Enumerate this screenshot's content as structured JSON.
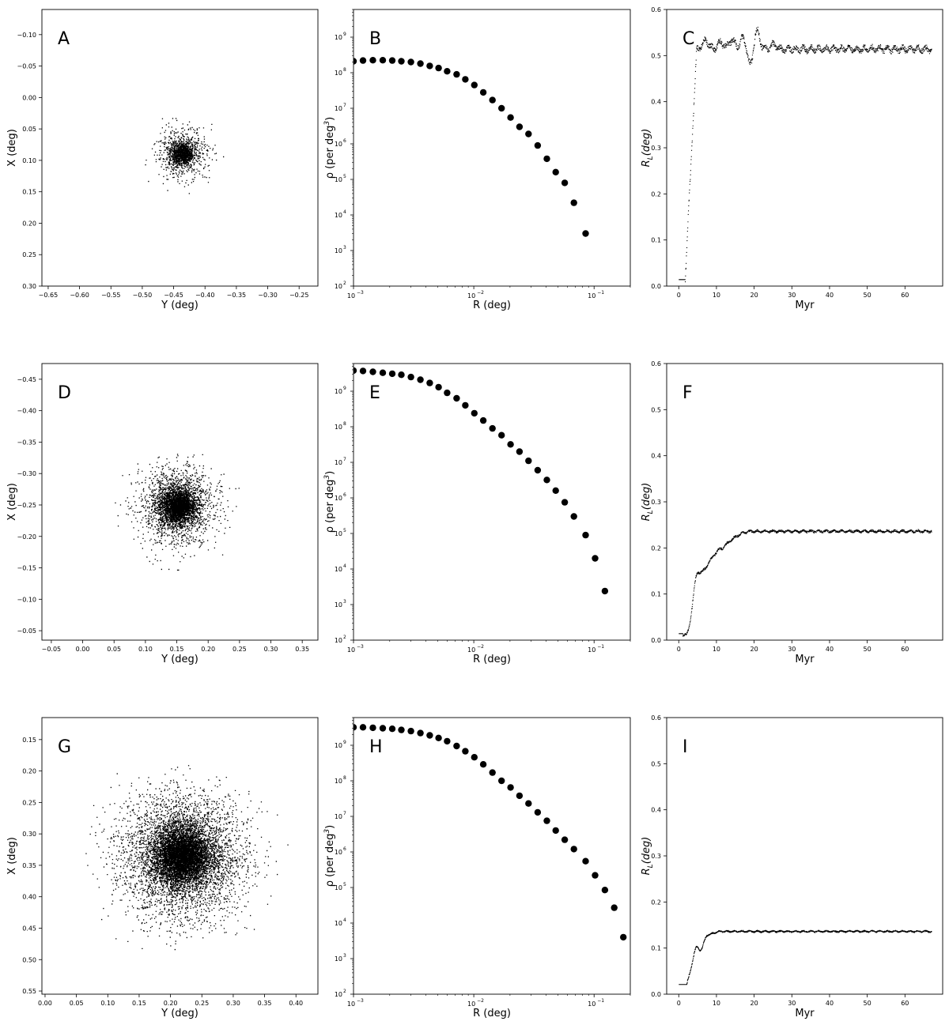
{
  "figure": {
    "panels": [
      "A",
      "B",
      "C",
      "D",
      "E",
      "F",
      "G",
      "H",
      "I"
    ]
  },
  "chart_data": [
    {
      "id": "A",
      "type": "scatter",
      "panel_label": "A",
      "xlabel": "Y (deg)",
      "ylabel": "X (deg)",
      "xlim": [
        -0.66,
        -0.22
      ],
      "ylim": [
        0.3,
        -0.14
      ],
      "y_inverted": true,
      "xticks": [
        -0.65,
        -0.6,
        -0.55,
        -0.5,
        -0.45,
        -0.4,
        -0.35,
        -0.3,
        -0.25
      ],
      "yticks": [
        -0.1,
        -0.05,
        0.0,
        0.05,
        0.1,
        0.15,
        0.2,
        0.25,
        0.3
      ],
      "cluster": {
        "center": [
          -0.437,
          0.088
        ],
        "core_sigma": 0.009,
        "halo_sigma": 0.02,
        "outer_radius": 0.07,
        "n_points": 1500
      }
    },
    {
      "id": "B",
      "type": "scatter",
      "panel_label": "B",
      "xlabel": "R (deg)",
      "ylabel": "ρ (per deg",
      "ylabel_sup": "3",
      "ylabel_end": ")",
      "x_scale": "log",
      "y_scale": "log",
      "xlim": [
        0.001,
        0.2
      ],
      "ylim": [
        100,
        6000000000.0
      ],
      "xticks": [
        0.001,
        0.01,
        0.1
      ],
      "xtick_labels": [
        "10",
        "10",
        "10"
      ],
      "xtick_sups": [
        "-3",
        "-2",
        "-1"
      ],
      "yticks": [
        100,
        1000,
        10000,
        100000,
        1000000,
        10000000,
        100000000,
        1000000000
      ],
      "ytick_labels": [
        "10",
        "10",
        "10",
        "10",
        "10",
        "10",
        "10",
        "10"
      ],
      "ytick_sups": [
        "2",
        "3",
        "4",
        "5",
        "6",
        "7",
        "8",
        "9"
      ],
      "x": [
        0.001,
        0.0012,
        0.00145,
        0.00175,
        0.0021,
        0.0025,
        0.003,
        0.0036,
        0.0043,
        0.0051,
        0.006,
        0.0072,
        0.0085,
        0.0101,
        0.012,
        0.0143,
        0.017,
        0.0202,
        0.024,
        0.0285,
        0.034,
        0.0405,
        0.048,
        0.057,
        0.068,
        0.085
      ],
      "y": [
        210000000.0,
        220000000.0,
        225000000.0,
        225000000.0,
        220000000.0,
        210000000.0,
        200000000.0,
        180000000.0,
        155000000.0,
        135000000.0,
        110000000.0,
        90000000.0,
        65000000.0,
        45000000.0,
        28000000.0,
        17000000.0,
        10000000.0,
        5500000.0,
        3000000.0,
        1900000.0,
        900000.0,
        380000.0,
        160000.0,
        80000.0,
        22000.0,
        3000.0
      ]
    },
    {
      "id": "C",
      "type": "scatter",
      "panel_label": "C",
      "xlabel": "Myr",
      "ylabel": "R",
      "ylabel_sub": "L",
      "ylabel_end": "(deg)",
      "xlim": [
        -3.2,
        70
      ],
      "ylim": [
        0,
        0.6
      ],
      "xticks": [
        0,
        10,
        20,
        30,
        40,
        50,
        60
      ],
      "yticks": [
        0,
        0.1,
        0.2,
        0.3,
        0.4,
        0.5,
        0.6
      ],
      "ytick_labels": [
        "0.0",
        "0.1",
        "0.2",
        "0.3",
        "0.4",
        "0.5",
        "0.6"
      ],
      "curve": {
        "t_end": 67,
        "base": 0.015,
        "rise_start": 1.6,
        "rise_end": 4.8,
        "plateau": 0.515,
        "noise": 0.008,
        "wiggles": [
          [
            7,
            0.02
          ],
          [
            11,
            0.015
          ],
          [
            14,
            0.02
          ],
          [
            17,
            0.025
          ],
          [
            19,
            -0.04
          ],
          [
            20.5,
            0.045
          ],
          [
            25,
            0.01
          ]
        ]
      }
    },
    {
      "id": "D",
      "type": "scatter",
      "panel_label": "D",
      "xlabel": "Y (deg)",
      "ylabel": "X (deg)",
      "xlim": [
        -0.065,
        0.375
      ],
      "ylim": [
        -0.035,
        -0.475
      ],
      "y_inverted": true,
      "xticks": [
        -0.05,
        0.0,
        0.05,
        0.1,
        0.15,
        0.2,
        0.25,
        0.3,
        0.35
      ],
      "yticks": [
        -0.45,
        -0.4,
        -0.35,
        -0.3,
        -0.25,
        -0.2,
        -0.15,
        -0.1,
        -0.05
      ],
      "cluster": {
        "center": [
          0.152,
          -0.248
        ],
        "core_sigma": 0.013,
        "halo_sigma": 0.03,
        "outer_radius": 0.105,
        "n_points": 4000
      }
    },
    {
      "id": "E",
      "type": "scatter",
      "panel_label": "E",
      "xlabel": "R (deg)",
      "ylabel": "ρ (per deg",
      "ylabel_sup": "3",
      "ylabel_end": ")",
      "x_scale": "log",
      "y_scale": "log",
      "xlim": [
        0.001,
        0.2
      ],
      "ylim": [
        100,
        6000000000.0
      ],
      "xticks": [
        0.001,
        0.01,
        0.1
      ],
      "xtick_labels": [
        "10",
        "10",
        "10"
      ],
      "xtick_sups": [
        "-3",
        "-2",
        "-1"
      ],
      "yticks": [
        100,
        1000,
        10000,
        100000,
        1000000,
        10000000,
        100000000,
        1000000000
      ],
      "ytick_labels": [
        "10",
        "10",
        "10",
        "10",
        "10",
        "10",
        "10",
        "10"
      ],
      "ytick_sups": [
        "2",
        "3",
        "4",
        "5",
        "6",
        "7",
        "8",
        "9"
      ],
      "x": [
        0.001,
        0.0012,
        0.00145,
        0.00175,
        0.0021,
        0.0025,
        0.003,
        0.0036,
        0.0043,
        0.0051,
        0.006,
        0.0072,
        0.0085,
        0.0101,
        0.012,
        0.0143,
        0.017,
        0.0202,
        0.024,
        0.0285,
        0.034,
        0.0405,
        0.048,
        0.057,
        0.068,
        0.085,
        0.102,
        0.123
      ],
      "y": [
        3800000000.0,
        3700000000.0,
        3500000000.0,
        3300000000.0,
        3100000000.0,
        2900000000.0,
        2500000000.0,
        2100000000.0,
        1700000000.0,
        1300000000.0,
        900000000.0,
        630000000.0,
        400000000.0,
        240000000.0,
        150000000.0,
        90000000.0,
        58000000.0,
        32000000.0,
        20000000.0,
        11000000.0,
        6000000.0,
        3200000.0,
        1600000.0,
        750000.0,
        300000.0,
        90000.0,
        20000.0,
        2400.0
      ]
    },
    {
      "id": "F",
      "type": "scatter",
      "panel_label": "F",
      "xlabel": "Myr",
      "ylabel": "R",
      "ylabel_sub": "L",
      "ylabel_end": "(deg)",
      "xlim": [
        -3.2,
        70
      ],
      "ylim": [
        0,
        0.6
      ],
      "xticks": [
        0,
        10,
        20,
        30,
        40,
        50,
        60
      ],
      "yticks": [
        0,
        0.1,
        0.2,
        0.3,
        0.4,
        0.5,
        0.6
      ],
      "ytick_labels": [
        "0.0",
        "0.1",
        "0.2",
        "0.3",
        "0.4",
        "0.5",
        "0.6"
      ],
      "curve": {
        "t_end": 67,
        "base": 0.015,
        "rise_start": 1.0,
        "rise_end": 20,
        "plateau": 0.237,
        "noise": 0.003,
        "wiggles": [
          [
            2.5,
            -0.03
          ],
          [
            4.5,
            0.04
          ],
          [
            6,
            0.02
          ],
          [
            8,
            0.015
          ],
          [
            10,
            0.01
          ]
        ]
      }
    },
    {
      "id": "G",
      "type": "scatter",
      "panel_label": "G",
      "xlabel": "Y (deg)",
      "ylabel": "X (deg)",
      "xlim": [
        -0.005,
        0.435
      ],
      "ylim": [
        0.555,
        0.115
      ],
      "y_inverted": true,
      "xticks": [
        0.0,
        0.05,
        0.1,
        0.15,
        0.2,
        0.25,
        0.3,
        0.35,
        0.4
      ],
      "yticks": [
        0.15,
        0.2,
        0.25,
        0.3,
        0.35,
        0.4,
        0.45,
        0.5,
        0.55
      ],
      "cluster": {
        "center": [
          0.218,
          0.335
        ],
        "core_sigma": 0.022,
        "halo_sigma": 0.05,
        "outer_radius": 0.17,
        "n_points": 9000
      }
    },
    {
      "id": "H",
      "type": "scatter",
      "panel_label": "H",
      "xlabel": "R (deg)",
      "ylabel": "ρ (per deg",
      "ylabel_sup": "3",
      "ylabel_end": ")",
      "x_scale": "log",
      "y_scale": "log",
      "xlim": [
        0.001,
        0.2
      ],
      "ylim": [
        100,
        6000000000.0
      ],
      "xticks": [
        0.001,
        0.01,
        0.1
      ],
      "xtick_labels": [
        "10",
        "10",
        "10"
      ],
      "xtick_sups": [
        "-3",
        "-2",
        "-1"
      ],
      "yticks": [
        100,
        1000,
        10000,
        100000,
        1000000,
        10000000,
        100000000,
        1000000000
      ],
      "ytick_labels": [
        "10",
        "10",
        "10",
        "10",
        "10",
        "10",
        "10",
        "10"
      ],
      "ytick_sups": [
        "2",
        "3",
        "4",
        "5",
        "6",
        "7",
        "8",
        "9"
      ],
      "x": [
        0.001,
        0.0012,
        0.00145,
        0.00175,
        0.0021,
        0.0025,
        0.003,
        0.0036,
        0.0043,
        0.0051,
        0.006,
        0.0072,
        0.0085,
        0.0101,
        0.012,
        0.0143,
        0.017,
        0.0202,
        0.024,
        0.0285,
        0.034,
        0.0405,
        0.048,
        0.057,
        0.068,
        0.085,
        0.102,
        0.123,
        0.147,
        0.175
      ],
      "y": [
        3200000000.0,
        3200000000.0,
        3100000000.0,
        3000000000.0,
        2900000000.0,
        2700000000.0,
        2500000000.0,
        2200000000.0,
        1900000000.0,
        1600000000.0,
        1300000000.0,
        950000000.0,
        680000000.0,
        460000000.0,
        290000000.0,
        170000000.0,
        100000000.0,
        65000000.0,
        38000000.0,
        23000000.0,
        13000000.0,
        7500000.0,
        4000000.0,
        2200000.0,
        1200000.0,
        550000.0,
        220000.0,
        85000.0,
        27000.0,
        4000.0
      ]
    },
    {
      "id": "I",
      "type": "scatter",
      "panel_label": "I",
      "xlabel": "Myr",
      "ylabel": "R",
      "ylabel_sub": "L",
      "ylabel_end": "(deg)",
      "xlim": [
        -3.2,
        70
      ],
      "ylim": [
        0,
        0.6
      ],
      "xticks": [
        0,
        10,
        20,
        30,
        40,
        50,
        60
      ],
      "yticks": [
        0,
        0.1,
        0.2,
        0.3,
        0.4,
        0.5,
        0.6
      ],
      "ytick_labels": [
        "0.0",
        "0.1",
        "0.2",
        "0.3",
        "0.4",
        "0.5",
        "0.6"
      ],
      "curve": {
        "t_end": 67,
        "base": 0.022,
        "rise_start": 2.0,
        "rise_end": 11,
        "plateau": 0.137,
        "noise": 0.002,
        "wiggles": [
          [
            4.5,
            0.025
          ],
          [
            5.8,
            -0.015
          ],
          [
            7,
            0.01
          ]
        ]
      }
    }
  ]
}
